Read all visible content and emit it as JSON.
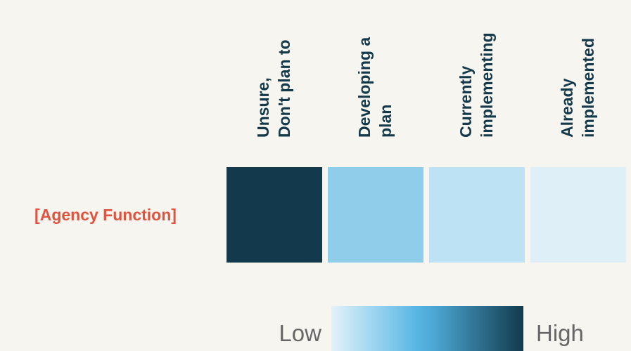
{
  "chart_data": {
    "type": "heatmap",
    "columns": [
      {
        "lines": [
          "Unsure,",
          "Don't plan to"
        ]
      },
      {
        "lines": [
          "Developing a",
          "plan"
        ]
      },
      {
        "lines": [
          "Currently",
          "implementing"
        ]
      },
      {
        "lines": [
          "Already",
          "implemented"
        ]
      }
    ],
    "rows": [
      {
        "label": "[Agency Function]",
        "cells": [
          {
            "level": 1.0,
            "color": "#133a4c"
          },
          {
            "level": 0.45,
            "color": "#8fcdea"
          },
          {
            "level": 0.25,
            "color": "#bde2f3"
          },
          {
            "level": 0.1,
            "color": "#dfeff8"
          }
        ]
      }
    ],
    "legend": {
      "low_label": "Low",
      "high_label": "High",
      "gradient": [
        "#e3f2fb",
        "#56b5e3",
        "#4aa3cf",
        "#133a4c"
      ]
    }
  },
  "colors": {
    "background": "#f7f5ef",
    "column_label": "#13394b",
    "row_label": "#e0533f",
    "legend_text": "#666666"
  }
}
